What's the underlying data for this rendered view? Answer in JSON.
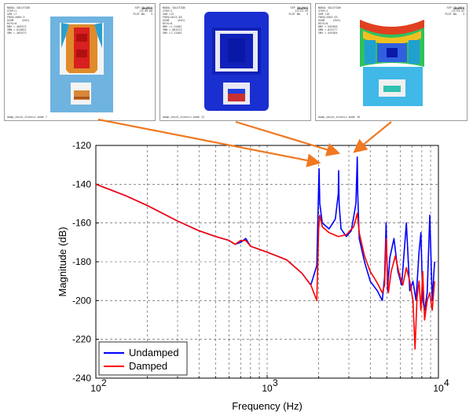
{
  "panels": [
    {
      "logo": "ANSYS",
      "header_left": "NODAL SOLUTION\nSTEP=1\nSUB =7\nFREQ=2009.3\nUSUM     (AVG)\nRSYS=0\nDMX =.403373\nSMN =.015822\nSMX =.403373",
      "header_right": "SEP 19 2011\n15:49:00\nPLOT NO.   3",
      "footer": "damp_chuck_elastic mode 7"
    },
    {
      "logo": "ANSYS",
      "header_left": "NODAL SOLUTION\nSTEP=1\nSUB =12\nFREQ=2613.56\nUSUM     (AVG)\nRSYS=0\nDMX =1.22482\nSMN =.001573\nSMX =1.22482",
      "header_right": "SEP 19 2011\n15:51:35\nPLOT NO.   3",
      "footer": "damp_chuck_elastic mode 12"
    },
    {
      "logo": "ANSYS",
      "header_left": "NODAL SOLUTION\nSTEP=1\nSUB =16\nFREQ=3363.55\nUSUM     (AVG)\nRSYS=0\nDMX =.545304\nSMN =.023177\nSMX =.545304",
      "header_right": "SEP 19 2011\n15:53:52\nPLOT NO.   3",
      "footer": "damp_chuck_elastic mode 16"
    }
  ],
  "chart_data": {
    "type": "line",
    "xlabel": "Frequency  (Hz)",
    "ylabel": "Magnitude (dB)",
    "xscale": "log",
    "xlim": [
      100,
      10000
    ],
    "ylim": [
      -240,
      -120
    ],
    "xticks": [
      100,
      1000,
      10000
    ],
    "xtick_labels": [
      "10",
      "10",
      "10"
    ],
    "xtick_exponents": [
      "2",
      "3",
      "4"
    ],
    "yticks": [
      -240,
      -220,
      -200,
      -180,
      -160,
      -140,
      -120
    ],
    "ytick_labels": [
      "-240",
      "-220",
      "-200",
      "-180",
      "-160",
      "-140",
      "-120"
    ],
    "grid": true,
    "legend_position": "bottom-left",
    "colors": {
      "undamped": "#0000ff",
      "damped": "#ff0000",
      "arrow": "#f07820"
    },
    "series": [
      {
        "name": "Undamped",
        "color": "#0000ff",
        "x": [
          100,
          150,
          200,
          300,
          400,
          500,
          600,
          650,
          700,
          750,
          800,
          1000,
          1300,
          1600,
          1800,
          1950,
          2000,
          2010,
          2030,
          2100,
          2300,
          2500,
          2600,
          2615,
          2630,
          2700,
          2900,
          3100,
          3300,
          3360,
          3380,
          3450,
          3700,
          4000,
          4400,
          4700,
          4850,
          4950,
          5050,
          5200,
          5500,
          5800,
          6100,
          6500,
          6800,
          7100,
          7400,
          7700,
          7900,
          8100,
          8300,
          8600,
          8900,
          9200,
          9500
        ],
        "y": [
          -140,
          -146,
          -151,
          -159,
          -164,
          -167,
          -169,
          -171,
          -170,
          -168,
          -172,
          -175,
          -179,
          -186,
          -192,
          -182,
          -140,
          -132,
          -150,
          -160,
          -163,
          -158,
          -145,
          -133,
          -150,
          -163,
          -167,
          -164,
          -150,
          -126,
          -145,
          -168,
          -180,
          -190,
          -195,
          -200,
          -188,
          -160,
          -195,
          -178,
          -168,
          -185,
          -192,
          -160,
          -195,
          -190,
          -200,
          -175,
          -165,
          -200,
          -205,
          -196,
          -156,
          -200,
          -180
        ]
      },
      {
        "name": "Damped",
        "color": "#ff0000",
        "x": [
          100,
          150,
          200,
          300,
          400,
          500,
          600,
          650,
          700,
          750,
          800,
          1000,
          1300,
          1600,
          1800,
          1950,
          2000,
          2030,
          2100,
          2300,
          2600,
          2900,
          3200,
          3360,
          3450,
          3700,
          4000,
          4400,
          4700,
          4850,
          4950,
          5100,
          5300,
          5600,
          5900,
          6200,
          6500,
          6800,
          7100,
          7300,
          7500,
          7700,
          7900,
          8100,
          8300,
          8600,
          8900,
          9200,
          9500
        ],
        "y": [
          -140,
          -146,
          -151,
          -159,
          -164,
          -167,
          -169,
          -171,
          -169,
          -169,
          -172,
          -175,
          -179,
          -186,
          -192,
          -200,
          -163,
          -156,
          -162,
          -165,
          -167,
          -166,
          -162,
          -155,
          -165,
          -177,
          -185,
          -191,
          -196,
          -192,
          -168,
          -196,
          -185,
          -177,
          -186,
          -192,
          -183,
          -190,
          -200,
          -225,
          -198,
          -190,
          -205,
          -185,
          -210,
          -200,
          -196,
          -205,
          -190
        ]
      }
    ]
  }
}
